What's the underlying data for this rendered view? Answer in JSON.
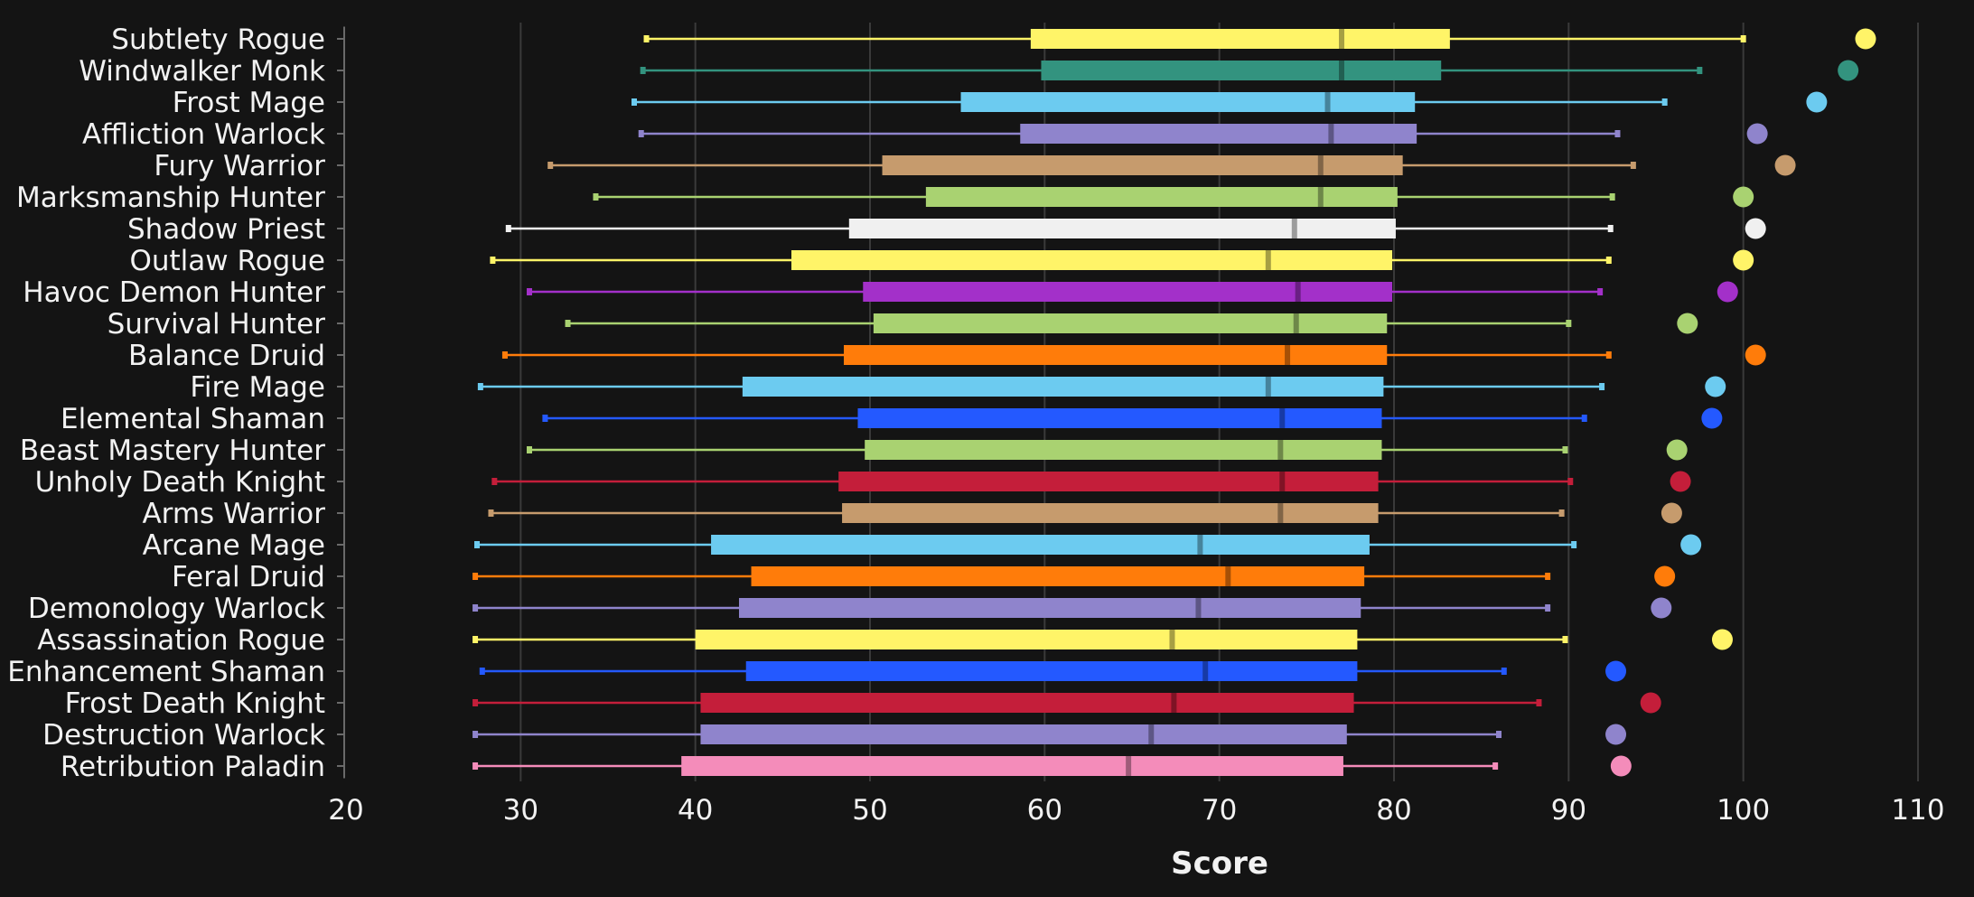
{
  "chart_data": {
    "type": "boxplot",
    "title": "",
    "xlabel": "Score",
    "ylabel": "",
    "xlim": [
      20,
      110
    ],
    "xticks": [
      20,
      30,
      40,
      50,
      60,
      70,
      80,
      90,
      100,
      110
    ],
    "grid": true,
    "categories": [
      {
        "name": "Subtlety Rogue",
        "color": "#fff468",
        "min": 37.2,
        "q1": 59.2,
        "median": 77.0,
        "q3": 83.2,
        "max": 100.0,
        "top": 107.0
      },
      {
        "name": "Windwalker Monk",
        "color": "#33937f",
        "min": 37.0,
        "q1": 59.8,
        "median": 77.0,
        "q3": 82.7,
        "max": 97.5,
        "top": 106.0
      },
      {
        "name": "Frost Mage",
        "color": "#6ccbf0",
        "min": 36.5,
        "q1": 55.2,
        "median": 76.2,
        "q3": 81.2,
        "max": 95.5,
        "top": 104.2
      },
      {
        "name": "Affliction Warlock",
        "color": "#8f84cc",
        "min": 36.9,
        "q1": 58.6,
        "median": 76.4,
        "q3": 81.3,
        "max": 92.8,
        "top": 100.8
      },
      {
        "name": "Fury Warrior",
        "color": "#c69b6d",
        "min": 31.7,
        "q1": 50.7,
        "median": 75.8,
        "q3": 80.5,
        "max": 93.7,
        "top": 102.4
      },
      {
        "name": "Marksmanship Hunter",
        "color": "#a9d271",
        "min": 34.3,
        "q1": 53.2,
        "median": 75.8,
        "q3": 80.2,
        "max": 92.5,
        "top": 100.0
      },
      {
        "name": "Shadow Priest",
        "color": "#f0f0f0",
        "min": 29.3,
        "q1": 48.8,
        "median": 74.3,
        "q3": 80.1,
        "max": 92.4,
        "top": 100.7
      },
      {
        "name": "Outlaw Rogue",
        "color": "#fff468",
        "min": 28.4,
        "q1": 45.5,
        "median": 72.8,
        "q3": 79.9,
        "max": 92.3,
        "top": 100.0
      },
      {
        "name": "Havoc Demon Hunter",
        "color": "#a330c9",
        "min": 30.5,
        "q1": 49.6,
        "median": 74.5,
        "q3": 79.9,
        "max": 91.8,
        "top": 99.1
      },
      {
        "name": "Survival Hunter",
        "color": "#a9d271",
        "min": 32.7,
        "q1": 50.2,
        "median": 74.4,
        "q3": 79.6,
        "max": 90.0,
        "top": 96.8
      },
      {
        "name": "Balance Druid",
        "color": "#ff7c0a",
        "min": 29.1,
        "q1": 48.5,
        "median": 73.9,
        "q3": 79.6,
        "max": 92.3,
        "top": 100.7
      },
      {
        "name": "Fire Mage",
        "color": "#6ccbf0",
        "min": 27.7,
        "q1": 42.7,
        "median": 72.8,
        "q3": 79.4,
        "max": 91.9,
        "top": 98.4
      },
      {
        "name": "Elemental Shaman",
        "color": "#2459ff",
        "min": 31.4,
        "q1": 49.3,
        "median": 73.6,
        "q3": 79.3,
        "max": 90.9,
        "top": 98.2
      },
      {
        "name": "Beast Mastery Hunter",
        "color": "#a9d271",
        "min": 30.5,
        "q1": 49.7,
        "median": 73.5,
        "q3": 79.3,
        "max": 89.8,
        "top": 96.2
      },
      {
        "name": "Unholy Death Knight",
        "color": "#c41e3a",
        "min": 28.5,
        "q1": 48.2,
        "median": 73.6,
        "q3": 79.1,
        "max": 90.1,
        "top": 96.4
      },
      {
        "name": "Arms Warrior",
        "color": "#c69b6d",
        "min": 28.3,
        "q1": 48.4,
        "median": 73.5,
        "q3": 79.1,
        "max": 89.6,
        "top": 95.9
      },
      {
        "name": "Arcane Mage",
        "color": "#6ccbf0",
        "min": 27.5,
        "q1": 40.9,
        "median": 68.9,
        "q3": 78.6,
        "max": 90.3,
        "top": 97.0
      },
      {
        "name": "Feral Druid",
        "color": "#ff7c0a",
        "min": 27.4,
        "q1": 43.2,
        "median": 70.5,
        "q3": 78.3,
        "max": 88.8,
        "top": 95.5
      },
      {
        "name": "Demonology Warlock",
        "color": "#8f84cc",
        "min": 27.4,
        "q1": 42.5,
        "median": 68.8,
        "q3": 78.1,
        "max": 88.8,
        "top": 95.3
      },
      {
        "name": "Assassination Rogue",
        "color": "#fff468",
        "min": 27.4,
        "q1": 40.0,
        "median": 67.3,
        "q3": 77.9,
        "max": 89.8,
        "top": 98.8
      },
      {
        "name": "Enhancement Shaman",
        "color": "#2459ff",
        "min": 27.8,
        "q1": 42.9,
        "median": 69.2,
        "q3": 77.9,
        "max": 86.3,
        "top": 92.7
      },
      {
        "name": "Frost Death Knight",
        "color": "#c41e3a",
        "min": 27.4,
        "q1": 40.3,
        "median": 67.4,
        "q3": 77.7,
        "max": 88.3,
        "top": 94.7
      },
      {
        "name": "Destruction Warlock",
        "color": "#8f84cc",
        "min": 27.4,
        "q1": 40.3,
        "median": 66.1,
        "q3": 77.3,
        "max": 86.0,
        "top": 92.7
      },
      {
        "name": "Retribution Paladin",
        "color": "#f48cba",
        "min": 27.4,
        "q1": 39.2,
        "median": 64.8,
        "q3": 77.1,
        "max": 85.8,
        "top": 93.0
      }
    ]
  }
}
